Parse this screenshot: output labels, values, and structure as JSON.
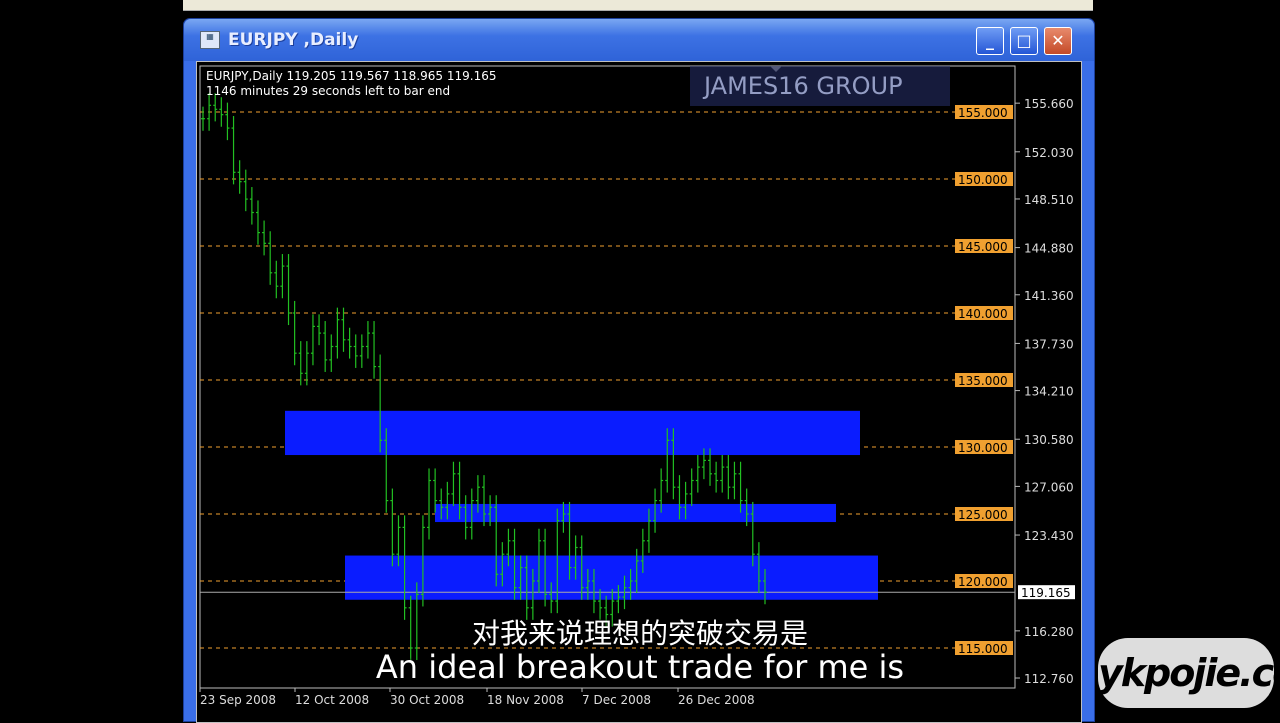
{
  "window": {
    "title": "EURJPY ,Daily",
    "minimize_icon": "minimize-icon",
    "maximize_icon": "maximize-icon",
    "close_icon": "close-icon"
  },
  "info": {
    "line1": "EURJPY,Daily  119.205 119.567 118.965 119.165",
    "line2": "1146 minutes 29 seconds left to bar end"
  },
  "subtitles": {
    "zh": "对我来说理想的突破交易是",
    "en": "An ideal breakout trade for me is"
  },
  "watermark": "ykpojie.com",
  "logo": "JAMES16 GROUP",
  "colors": {
    "bars": "#22c022",
    "zones": "#0a1cff",
    "levels": "#f0a030",
    "background": "#000000"
  },
  "chart_data": {
    "type": "bar",
    "symbol": "EURJPY",
    "timeframe": "Daily",
    "ylim": [
      111.5,
      158
    ],
    "y_ticks": [
      "155.660",
      "152.030",
      "148.510",
      "144.880",
      "141.360",
      "137.730",
      "134.210",
      "130.580",
      "127.060",
      "123.430",
      "116.280",
      "112.760"
    ],
    "x_ticks": [
      "23 Sep 2008",
      "12 Oct 2008",
      "30 Oct 2008",
      "18 Nov 2008",
      "7 Dec 2008",
      "26 Dec 2008"
    ],
    "level_lines": [
      "155.000",
      "150.000",
      "145.000",
      "140.000",
      "135.000",
      "130.000",
      "125.000",
      "120.000",
      "115.000"
    ],
    "current_price": "119.165",
    "zones": [
      {
        "top": 132.7,
        "bottom": 129.4
      },
      {
        "top": 125.75,
        "bottom": 124.4
      },
      {
        "top": 121.9,
        "bottom": 118.6
      }
    ],
    "closes": [
      154.5,
      155.5,
      155.2,
      154.8,
      153.8,
      150.5,
      149.8,
      148.5,
      147.5,
      146,
      145.2,
      143,
      142,
      143.5,
      140,
      137,
      135.5,
      137,
      139,
      138.5,
      136.5,
      137.5,
      139.5,
      138,
      137.5,
      136.8,
      137.5,
      138.5,
      136,
      130.5,
      126,
      122,
      124,
      118,
      115,
      119,
      124,
      127.5,
      126,
      125.5,
      126.5,
      128,
      125.5,
      124,
      126,
      127,
      125,
      125.5,
      120.5,
      122,
      123,
      119.5,
      121,
      118,
      120,
      123,
      119,
      118.5,
      124.5,
      125,
      121,
      122.5,
      119.5,
      120,
      118.5,
      118,
      117.5,
      118.5,
      118.8,
      119.5,
      120,
      121.5,
      123,
      124.5,
      126,
      127.5,
      130.5,
      127,
      125.5,
      126.5,
      127.5,
      128.5,
      129,
      128,
      127.5,
      128.5,
      127,
      128,
      126,
      125,
      122,
      120,
      119.165
    ]
  }
}
